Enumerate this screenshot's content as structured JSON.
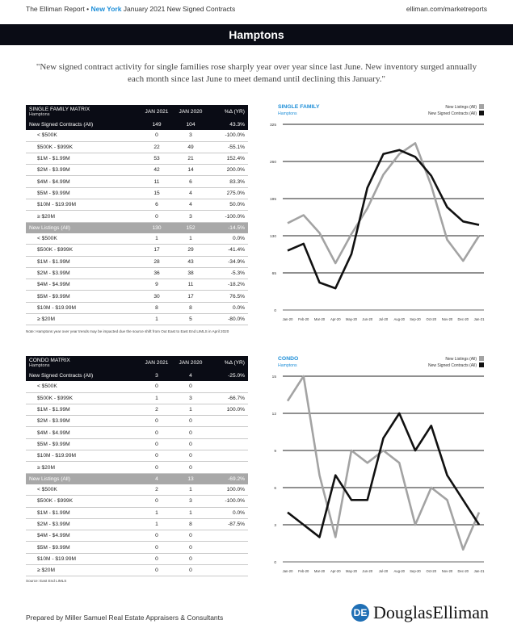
{
  "header": {
    "report_title": "The Elliman Report •",
    "report_city": "New York",
    "report_subtitle": "January 2021 New Signed Contracts",
    "website": "elliman.com/marketreports",
    "region_banner": "Hamptons"
  },
  "quote": "\"New signed contract activity for single families rose sharply year over year since last June. New inventory surged annually each month since last June to meet demand until declining this January.\"",
  "sf_matrix": {
    "title": "SINGLE FAMILY MATRIX",
    "subtitle": "Hamptons",
    "col1": "JAN 2021",
    "col2": "JAN 2020",
    "col3": "%Δ (YR)",
    "rows": [
      {
        "label": "New Signed Contracts (All)",
        "a": "149",
        "b": "104",
        "c": "43.3%",
        "style": "dark"
      },
      {
        "label": "< $500K",
        "a": "0",
        "b": "3",
        "c": "-100.0%",
        "style": "sub"
      },
      {
        "label": "$500K - $999K",
        "a": "22",
        "b": "49",
        "c": "-55.1%",
        "style": "sub"
      },
      {
        "label": "$1M - $1.99M",
        "a": "53",
        "b": "21",
        "c": "152.4%",
        "style": "sub"
      },
      {
        "label": "$2M - $3.99M",
        "a": "42",
        "b": "14",
        "c": "200.0%",
        "style": "sub"
      },
      {
        "label": "$4M - $4.99M",
        "a": "11",
        "b": "6",
        "c": "83.3%",
        "style": "sub"
      },
      {
        "label": "$5M - $9.99M",
        "a": "15",
        "b": "4",
        "c": "275.0%",
        "style": "sub"
      },
      {
        "label": "$10M - $19.99M",
        "a": "6",
        "b": "4",
        "c": "50.0%",
        "style": "sub"
      },
      {
        "label": "≥ $20M",
        "a": "0",
        "b": "3",
        "c": "-100.0%",
        "style": "sub"
      },
      {
        "label": "New Listings (All)",
        "a": "130",
        "b": "152",
        "c": "-14.5%",
        "style": "gray"
      },
      {
        "label": "< $500K",
        "a": "1",
        "b": "1",
        "c": "0.0%",
        "style": "sub"
      },
      {
        "label": "$500K - $999K",
        "a": "17",
        "b": "29",
        "c": "-41.4%",
        "style": "sub"
      },
      {
        "label": "$1M - $1.99M",
        "a": "28",
        "b": "43",
        "c": "-34.9%",
        "style": "sub"
      },
      {
        "label": "$2M - $3.99M",
        "a": "36",
        "b": "38",
        "c": "-5.3%",
        "style": "sub"
      },
      {
        "label": "$4M - $4.99M",
        "a": "9",
        "b": "11",
        "c": "-18.2%",
        "style": "sub"
      },
      {
        "label": "$5M - $9.99M",
        "a": "30",
        "b": "17",
        "c": "76.5%",
        "style": "sub"
      },
      {
        "label": "$10M - $19.99M",
        "a": "8",
        "b": "8",
        "c": "0.0%",
        "style": "sub"
      },
      {
        "label": "≥ $20M",
        "a": "1",
        "b": "5",
        "c": "-80.0%",
        "style": "sub"
      }
    ],
    "note": "Note: Hamptons year over year trends may be impacted due the source shift from Out East to East End LIMLS in April 2020"
  },
  "condo_matrix": {
    "title": "CONDO MATRIX",
    "subtitle": "Hamptons",
    "col1": "JAN 2021",
    "col2": "JAN 2020",
    "col3": "%Δ (YR)",
    "rows": [
      {
        "label": "New Signed Contracts (All)",
        "a": "3",
        "b": "4",
        "c": "-25.0%",
        "style": "dark"
      },
      {
        "label": "< $500K",
        "a": "0",
        "b": "0",
        "c": "",
        "style": "sub"
      },
      {
        "label": "$500K - $999K",
        "a": "1",
        "b": "3",
        "c": "-66.7%",
        "style": "sub"
      },
      {
        "label": "$1M - $1.99M",
        "a": "2",
        "b": "1",
        "c": "100.0%",
        "style": "sub"
      },
      {
        "label": "$2M - $3.99M",
        "a": "0",
        "b": "0",
        "c": "",
        "style": "sub"
      },
      {
        "label": "$4M - $4.99M",
        "a": "0",
        "b": "0",
        "c": "",
        "style": "sub"
      },
      {
        "label": "$5M - $9.99M",
        "a": "0",
        "b": "0",
        "c": "",
        "style": "sub"
      },
      {
        "label": "$10M - $19.99M",
        "a": "0",
        "b": "0",
        "c": "",
        "style": "sub"
      },
      {
        "label": "≥ $20M",
        "a": "0",
        "b": "0",
        "c": "",
        "style": "sub"
      },
      {
        "label": "New Listings (All)",
        "a": "4",
        "b": "13",
        "c": "-69.2%",
        "style": "gray"
      },
      {
        "label": "< $500K",
        "a": "2",
        "b": "1",
        "c": "100.0%",
        "style": "sub"
      },
      {
        "label": "$500K - $999K",
        "a": "0",
        "b": "3",
        "c": "-100.0%",
        "style": "sub"
      },
      {
        "label": "$1M - $1.99M",
        "a": "1",
        "b": "1",
        "c": "0.0%",
        "style": "sub"
      },
      {
        "label": "$2M - $3.99M",
        "a": "1",
        "b": "8",
        "c": "-87.5%",
        "style": "sub"
      },
      {
        "label": "$4M - $4.99M",
        "a": "0",
        "b": "0",
        "c": "",
        "style": "sub"
      },
      {
        "label": "$5M - $9.99M",
        "a": "0",
        "b": "0",
        "c": "",
        "style": "sub"
      },
      {
        "label": "$10M - $19.99M",
        "a": "0",
        "b": "0",
        "c": "",
        "style": "sub"
      },
      {
        "label": "≥ $20M",
        "a": "0",
        "b": "0",
        "c": "",
        "style": "sub"
      }
    ],
    "note": "Source: East End LIMLS"
  },
  "chart_data": [
    {
      "type": "line",
      "title": "SINGLE FAMILY",
      "subtitle": "Hamptons",
      "categories": [
        "Jan-20",
        "Feb-20",
        "Mar-20",
        "Apr-20",
        "May-20",
        "Jun-20",
        "Jul-20",
        "Aug-20",
        "Sep-20",
        "Oct-20",
        "Nov-20",
        "Dec-20",
        "Jan-21"
      ],
      "yticks": [
        "0",
        "65",
        "130",
        "195",
        "260",
        "325"
      ],
      "ylim": [
        0,
        325
      ],
      "series": [
        {
          "name": "New Listings (All)",
          "color": "#a3a3a3",
          "values": [
            152,
            166,
            135,
            82,
            133,
            178,
            237,
            273,
            292,
            218,
            123,
            86,
            130
          ]
        },
        {
          "name": "New Signed Contracts (All)",
          "color": "#111111",
          "values": [
            104,
            116,
            48,
            38,
            98,
            214,
            273,
            280,
            268,
            235,
            180,
            155,
            149
          ]
        }
      ]
    },
    {
      "type": "line",
      "title": "CONDO",
      "subtitle": "Hamptons",
      "categories": [
        "Jan-20",
        "Feb-20",
        "Mar-20",
        "Apr-20",
        "May-20",
        "Jun-20",
        "Jul-20",
        "Aug-20",
        "Sep-20",
        "Oct-20",
        "Nov-20",
        "Dec-20",
        "Jan-21"
      ],
      "yticks": [
        "0",
        "3",
        "6",
        "9",
        "12",
        "15"
      ],
      "ylim": [
        0,
        15
      ],
      "series": [
        {
          "name": "New Listings (All)",
          "color": "#a3a3a3",
          "values": [
            13,
            15,
            7,
            2,
            9,
            8,
            9,
            8,
            3,
            6,
            5,
            1,
            4
          ]
        },
        {
          "name": "New Signed Contracts (All)",
          "color": "#111111",
          "values": [
            4,
            3,
            2,
            7,
            5,
            5,
            10,
            12,
            9,
            11,
            7,
            5,
            3
          ]
        }
      ]
    }
  ],
  "footer": {
    "prepared_by": "Prepared by Miller Samuel Real Estate Appraisers & Consultants",
    "logo_mark": "DE",
    "logo_text": "DouglasElliman"
  }
}
